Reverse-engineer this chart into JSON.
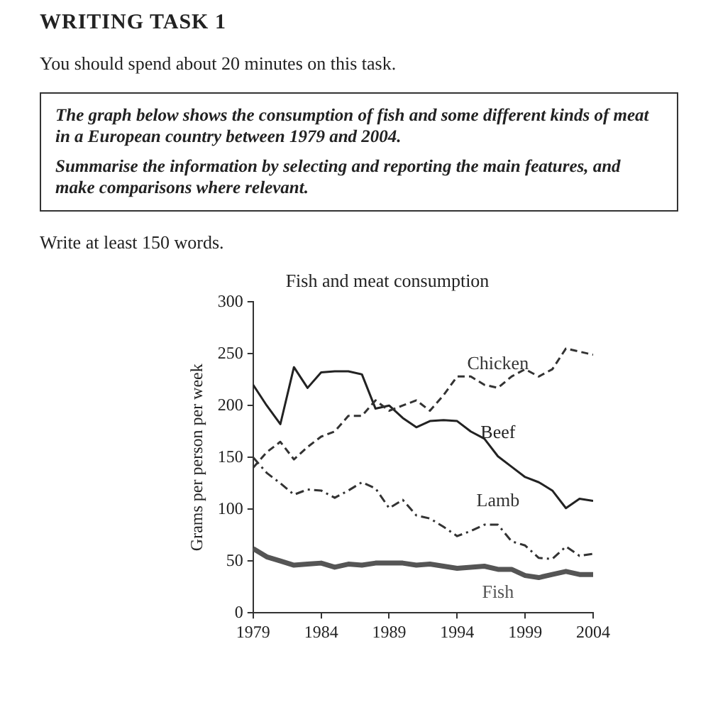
{
  "chart_data": {
    "type": "line",
    "title": "Fish and meat consumption",
    "ylabel": "Grams per person per week",
    "annotations": [
      "WRITING TASK 1",
      "You should spend about 20 minutes on this task.",
      "The graph below shows the consumption of fish and some different kinds of meat in a European country between 1979 and 2004.",
      "Summarise the information by selecting and reporting the main features, and make comparisons where relevant.",
      "Write at least 150 words."
    ],
    "x": [
      1979,
      1980,
      1981,
      1982,
      1983,
      1984,
      1985,
      1986,
      1987,
      1988,
      1989,
      1990,
      1991,
      1992,
      1993,
      1994,
      1995,
      1996,
      1997,
      1998,
      1999,
      2000,
      2001,
      2002,
      2003,
      2004
    ],
    "series": [
      {
        "name": "Chicken",
        "color": "#333333",
        "line_style": "dashed",
        "values": [
          140,
          155,
          165,
          148,
          160,
          170,
          175,
          190,
          190,
          205,
          195,
          200,
          205,
          195,
          210,
          228,
          228,
          220,
          217,
          228,
          235,
          228,
          235,
          255,
          252,
          249
        ]
      },
      {
        "name": "Beef",
        "color": "#222222",
        "line_style": "solid",
        "values": [
          220,
          200,
          182,
          237,
          217,
          232,
          233,
          233,
          230,
          197,
          200,
          188,
          179,
          185,
          186,
          185,
          175,
          168,
          151,
          141,
          131,
          126,
          118,
          101,
          110,
          108
        ]
      },
      {
        "name": "Lamb",
        "color": "#333333",
        "line_style": "dotted",
        "values": [
          150,
          135,
          125,
          114,
          119,
          118,
          111,
          118,
          126,
          120,
          101,
          109,
          94,
          91,
          83,
          74,
          79,
          85,
          85,
          69,
          65,
          53,
          52,
          64,
          55,
          57
        ]
      },
      {
        "name": "Fish",
        "color": "#555555",
        "line_style": "solid",
        "values": [
          62,
          54,
          50,
          46,
          47,
          48,
          44,
          47,
          46,
          48,
          48,
          48,
          46,
          47,
          45,
          43,
          44,
          45,
          42,
          42,
          36,
          34,
          37,
          40,
          37,
          37
        ]
      }
    ],
    "xlim": [
      1979,
      2004
    ],
    "xticks": [
      1979,
      1984,
      1989,
      1994,
      1999,
      2004
    ],
    "ylim": [
      0,
      300
    ],
    "yticks": [
      0,
      50,
      100,
      150,
      200,
      250,
      300
    ],
    "grid": false,
    "legend": false,
    "marker": "none"
  }
}
